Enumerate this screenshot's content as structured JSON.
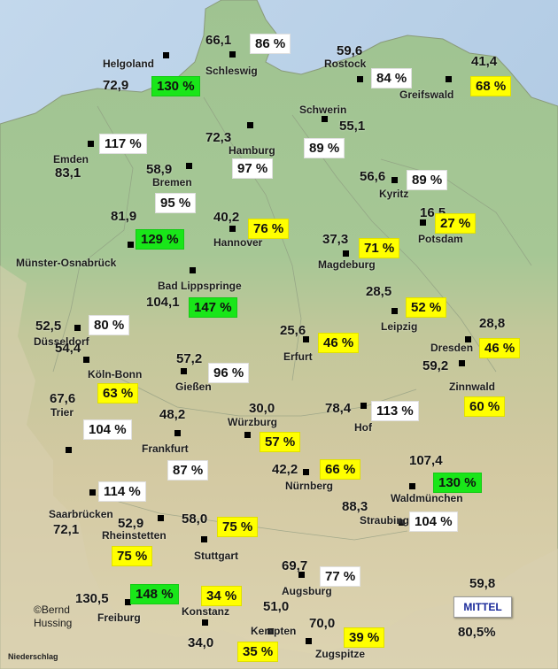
{
  "colors": {
    "white": "#ffffff",
    "green": "#19e619",
    "yellow": "#ffff00",
    "sea": "#b6cfe6",
    "lowland": "#a9c79a",
    "highland": "#cfc7a0"
  },
  "stations": [
    {
      "name": "Helgoland",
      "value": "72,9",
      "percent": "130 %",
      "category": "green",
      "dot": [
        187,
        62
      ],
      "name_pos": [
        116,
        66
      ],
      "value_pos": [
        116,
        89
      ],
      "percent_pos": [
        171,
        86
      ]
    },
    {
      "name": "Schleswig",
      "value": "66,1",
      "percent": "86 %",
      "category": "white",
      "dot": [
        262,
        61
      ],
      "name_pos": [
        232,
        74
      ],
      "value_pos": [
        232,
        38
      ],
      "percent_pos": [
        282,
        38
      ]
    },
    {
      "name": "Rostock",
      "value": "59,6",
      "percent": "84 %",
      "category": "white",
      "dot": [
        406,
        89
      ],
      "name_pos": [
        366,
        66
      ],
      "value_pos": [
        380,
        50
      ],
      "percent_pos": [
        419,
        77
      ]
    },
    {
      "name": "Greifswald",
      "value": "41,4",
      "percent": "68 %",
      "category": "yellow",
      "dot": [
        506,
        89
      ],
      "name_pos": [
        451,
        101
      ],
      "value_pos": [
        532,
        62
      ],
      "percent_pos": [
        531,
        86
      ]
    },
    {
      "name": "Schwerin",
      "value": "55,1",
      "percent": "89 %",
      "category": "white",
      "dot": [
        366,
        134
      ],
      "name_pos": [
        338,
        118
      ],
      "value_pos": [
        383,
        135
      ],
      "percent_pos": [
        343,
        156
      ]
    },
    {
      "name": "Hamburg",
      "value": "72,3",
      "percent": "97 %",
      "category": "white",
      "dot": [
        282,
        141
      ],
      "name_pos": [
        258,
        164
      ],
      "value_pos": [
        232,
        148
      ],
      "percent_pos": [
        262,
        179
      ]
    },
    {
      "name": "Emden",
      "value": "83,1",
      "percent": "117 %",
      "category": "white",
      "dot": [
        102,
        162
      ],
      "name_pos": [
        60,
        174
      ],
      "value_pos": [
        62,
        188
      ],
      "percent_pos": [
        112,
        151
      ]
    },
    {
      "name": "Bremen",
      "value": "58,9",
      "percent": "95 %",
      "category": "white",
      "dot": [
        213,
        187
      ],
      "name_pos": [
        172,
        200
      ],
      "value_pos": [
        165,
        184
      ],
      "percent_pos": [
        175,
        218
      ]
    },
    {
      "name": "Kyritz",
      "value": "56,6",
      "percent": "89 %",
      "category": "white",
      "dot": [
        445,
        203
      ],
      "name_pos": [
        428,
        213
      ],
      "value_pos": [
        406,
        192
      ],
      "percent_pos": [
        459,
        192
      ]
    },
    {
      "name": "Potsdam",
      "value": "16,5",
      "percent": "27 %",
      "category": "yellow",
      "dot": [
        477,
        251
      ],
      "name_pos": [
        472,
        264
      ],
      "value_pos": [
        474,
        233
      ],
      "percent_pos": [
        491,
        241
      ]
    },
    {
      "name": "Hannover",
      "value": "40,2",
      "percent": "76 %",
      "category": "yellow",
      "dot": [
        262,
        258
      ],
      "name_pos": [
        241,
        268
      ],
      "value_pos": [
        241,
        238
      ],
      "percent_pos": [
        280,
        247
      ]
    },
    {
      "name": "Münster-Osnabrück",
      "value": "81,9",
      "percent": "129 %",
      "category": "green",
      "dot": [
        147,
        276
      ],
      "name_pos": [
        18,
        291
      ],
      "value_pos": [
        125,
        237
      ],
      "percent_pos": [
        153,
        259
      ]
    },
    {
      "name": "Magdeburg",
      "value": "37,3",
      "percent": "71 %",
      "category": "yellow",
      "dot": [
        390,
        286
      ],
      "name_pos": [
        359,
        293
      ],
      "value_pos": [
        364,
        263
      ],
      "percent_pos": [
        405,
        269
      ]
    },
    {
      "name": "Bad Lippspringe",
      "value": "104,1",
      "percent": "147 %",
      "category": "green",
      "dot": [
        217,
        305
      ],
      "name_pos": [
        178,
        317
      ],
      "value_pos": [
        165,
        334
      ],
      "percent_pos": [
        213,
        336
      ]
    },
    {
      "name": "Leipzig",
      "value": "28,5",
      "percent": "52 %",
      "category": "yellow",
      "dot": [
        445,
        351
      ],
      "name_pos": [
        430,
        363
      ],
      "value_pos": [
        413,
        322
      ],
      "percent_pos": [
        458,
        336
      ]
    },
    {
      "name": "Düsseldorf",
      "value": "52,5",
      "percent": "80 %",
      "category": "white",
      "dot": [
        87,
        370
      ],
      "name_pos": [
        38,
        380
      ],
      "value_pos": [
        40,
        361
      ],
      "percent_pos": [
        100,
        356
      ]
    },
    {
      "name": "Erfurt",
      "value": "25,6",
      "percent": "46 %",
      "category": "yellow",
      "dot": [
        345,
        383
      ],
      "name_pos": [
        320,
        397
      ],
      "value_pos": [
        316,
        366
      ],
      "percent_pos": [
        359,
        376
      ]
    },
    {
      "name": "Dresden",
      "value": "28,8",
      "percent": "46 %",
      "category": "yellow",
      "dot": [
        528,
        383
      ],
      "name_pos": [
        486,
        387
      ],
      "value_pos": [
        541,
        358
      ],
      "percent_pos": [
        541,
        382
      ]
    },
    {
      "name": "Köln-Bonn",
      "value": "54,4",
      "percent": "63 %",
      "category": "yellow",
      "dot": [
        97,
        406
      ],
      "name_pos": [
        99,
        417
      ],
      "value_pos": [
        62,
        386
      ],
      "percent_pos": [
        110,
        433
      ]
    },
    {
      "name": "Gießen",
      "value": "57,2",
      "percent": "96 %",
      "category": "white",
      "dot": [
        207,
        419
      ],
      "name_pos": [
        198,
        431
      ],
      "value_pos": [
        199,
        398
      ],
      "percent_pos": [
        235,
        410
      ]
    },
    {
      "name": "Zinnwald",
      "value": "59,2",
      "percent": "60 %",
      "category": "yellow",
      "dot": [
        521,
        410
      ],
      "name_pos": [
        507,
        431
      ],
      "value_pos": [
        477,
        406
      ],
      "percent_pos": [
        524,
        448
      ]
    },
    {
      "name": "Hof",
      "value": "78,4",
      "percent": "113 %",
      "category": "white",
      "dot": [
        410,
        458
      ],
      "name_pos": [
        400,
        477
      ],
      "value_pos": [
        367,
        454
      ],
      "percent_pos": [
        419,
        453
      ]
    },
    {
      "name": "Trier",
      "value": "67,6",
      "percent": "104 %",
      "category": "white",
      "dot": [
        77,
        508
      ],
      "name_pos": [
        57,
        460
      ],
      "value_pos": [
        56,
        443
      ],
      "percent_pos": [
        94,
        474
      ]
    },
    {
      "name": "Würzburg",
      "value": "30,0",
      "percent": "57 %",
      "category": "yellow",
      "dot": [
        279,
        491
      ],
      "name_pos": [
        257,
        471
      ],
      "value_pos": [
        281,
        454
      ],
      "percent_pos": [
        293,
        488
      ]
    },
    {
      "name": "Frankfurt",
      "value": "48,2",
      "percent": "87 %",
      "category": "white",
      "dot": [
        200,
        489
      ],
      "name_pos": [
        160,
        501
      ],
      "value_pos": [
        180,
        461
      ],
      "percent_pos": [
        189,
        520
      ]
    },
    {
      "name": "Nürnberg",
      "value": "42,2",
      "percent": "66 %",
      "category": "yellow",
      "dot": [
        345,
        533
      ],
      "name_pos": [
        322,
        543
      ],
      "value_pos": [
        307,
        523
      ],
      "percent_pos": [
        361,
        519
      ]
    },
    {
      "name": "Waldmünchen",
      "value": "107,4",
      "percent": "130 %",
      "category": "green",
      "dot": [
        465,
        549
      ],
      "name_pos": [
        441,
        557
      ],
      "value_pos": [
        462,
        513
      ],
      "percent_pos": [
        489,
        534
      ]
    },
    {
      "name": "Saarbrücken",
      "value": "72,1",
      "percent": "114 %",
      "category": "white",
      "dot": [
        104,
        556
      ],
      "name_pos": [
        55,
        575
      ],
      "value_pos": [
        60,
        591
      ],
      "percent_pos": [
        111,
        544
      ]
    },
    {
      "name": "Straubing",
      "value": "88,3",
      "percent": "104 %",
      "category": "white",
      "dot": [
        453,
        590
      ],
      "name_pos": [
        406,
        582
      ],
      "value_pos": [
        386,
        565
      ],
      "percent_pos": [
        462,
        578
      ]
    },
    {
      "name": "Rheinstetten",
      "value": "52,9",
      "percent": "75 %",
      "category": "yellow",
      "dot": [
        181,
        585
      ],
      "name_pos": [
        115,
        599
      ],
      "value_pos": [
        133,
        584
      ],
      "percent_pos": [
        126,
        617
      ]
    },
    {
      "name": "Stuttgart",
      "value": "58,0",
      "percent": "75 %",
      "category": "yellow",
      "dot": [
        230,
        609
      ],
      "name_pos": [
        219,
        622
      ],
      "value_pos": [
        205,
        579
      ],
      "percent_pos": [
        245,
        584
      ]
    },
    {
      "name": "Augsburg",
      "value": "69,7",
      "percent": "77 %",
      "category": "white",
      "dot": [
        340,
        649
      ],
      "name_pos": [
        318,
        662
      ],
      "value_pos": [
        318,
        632
      ],
      "percent_pos": [
        361,
        640
      ]
    },
    {
      "name": "Freiburg",
      "value": "130,5",
      "percent": "148 %",
      "category": "green",
      "dot": [
        144,
        680
      ],
      "name_pos": [
        110,
        692
      ],
      "value_pos": [
        85,
        669
      ],
      "percent_pos": [
        147,
        660
      ]
    },
    {
      "name": "Konstanz",
      "value": "34,0",
      "percent": "34 %",
      "category": "yellow",
      "dot": [
        231,
        703
      ],
      "name_pos": [
        205,
        685
      ],
      "value_pos": [
        212,
        719
      ],
      "percent_pos": [
        227,
        662
      ]
    },
    {
      "name": "Kempten",
      "value": "51,0",
      "percent": "35 %",
      "category": "yellow",
      "dot": [
        305,
        713
      ],
      "name_pos": [
        283,
        707
      ],
      "value_pos": [
        297,
        678
      ],
      "percent_pos": [
        268,
        725
      ]
    },
    {
      "name": "Zugspitze",
      "value": "70,0",
      "percent": "39 %",
      "category": "yellow",
      "dot": [
        348,
        724
      ],
      "name_pos": [
        356,
        733
      ],
      "value_pos": [
        349,
        697
      ],
      "percent_pos": [
        388,
        709
      ]
    }
  ],
  "mittel": {
    "label": "MITTEL",
    "value": "59,8",
    "percent": "80,5%"
  },
  "credit": {
    "line1": "©Bernd",
    "line2": "Hussing"
  },
  "footer_label": "Niederschlag"
}
